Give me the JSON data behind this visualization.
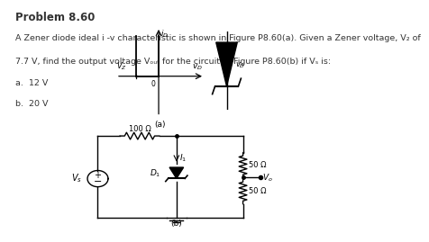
{
  "title": "Problem 8.60",
  "desc1": "A Zener diode ideal i -v characteristic is shown in Figure P8.60(a). Given a Zener voltage, V₂ of",
  "desc2": "7.7 V, find the output voltage Vₒᵤₜ for the circuit of Figure P8.60(b) if Vₛ is:",
  "desc3": "a.  12 V",
  "desc4": "b.  20 V",
  "bg_color": "#ffffff",
  "text_color": "#333333",
  "title_fontsize": 8.5,
  "body_fontsize": 6.8
}
